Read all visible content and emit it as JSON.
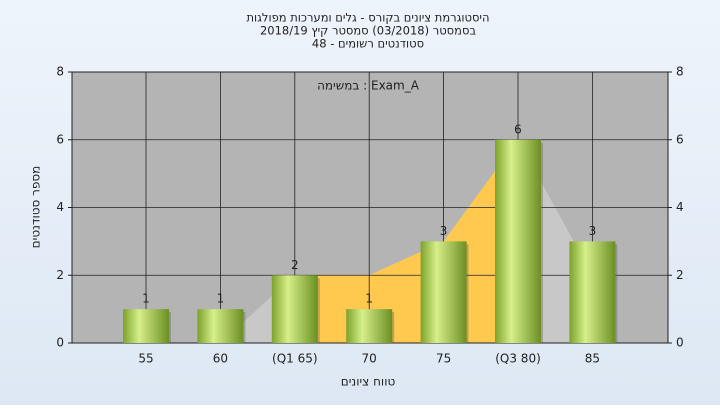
{
  "chart_data": {
    "type": "bar",
    "title": [
      "היסטוגרמת ציונים בקורס - גלים ומערכות מפולגות",
      "בסמסטר  (03/2018)  סמסטר קיץ  2018/19",
      "סטודנטים רשומים - 48"
    ],
    "annotation": "במשימה : Exam_A",
    "x_label": "טווח ציונים",
    "y_label": "מספר סטודנטים",
    "categories": [
      "55",
      "60",
      "(Q1 65)",
      "70",
      "75",
      "(Q3 80)",
      "85"
    ],
    "values": [
      1,
      1,
      2,
      1,
      3,
      6,
      3
    ],
    "color": "#9ccc3c",
    "area": {
      "values": [
        null,
        0,
        2,
        2,
        3,
        6,
        2
      ],
      "color": "#c8c8c8",
      "band_color": "#ffc84f",
      "band": [
        2,
        5
      ]
    },
    "ylim": [
      0,
      8
    ],
    "yticks": [
      0,
      2,
      4,
      6,
      8
    ],
    "grid": true
  }
}
